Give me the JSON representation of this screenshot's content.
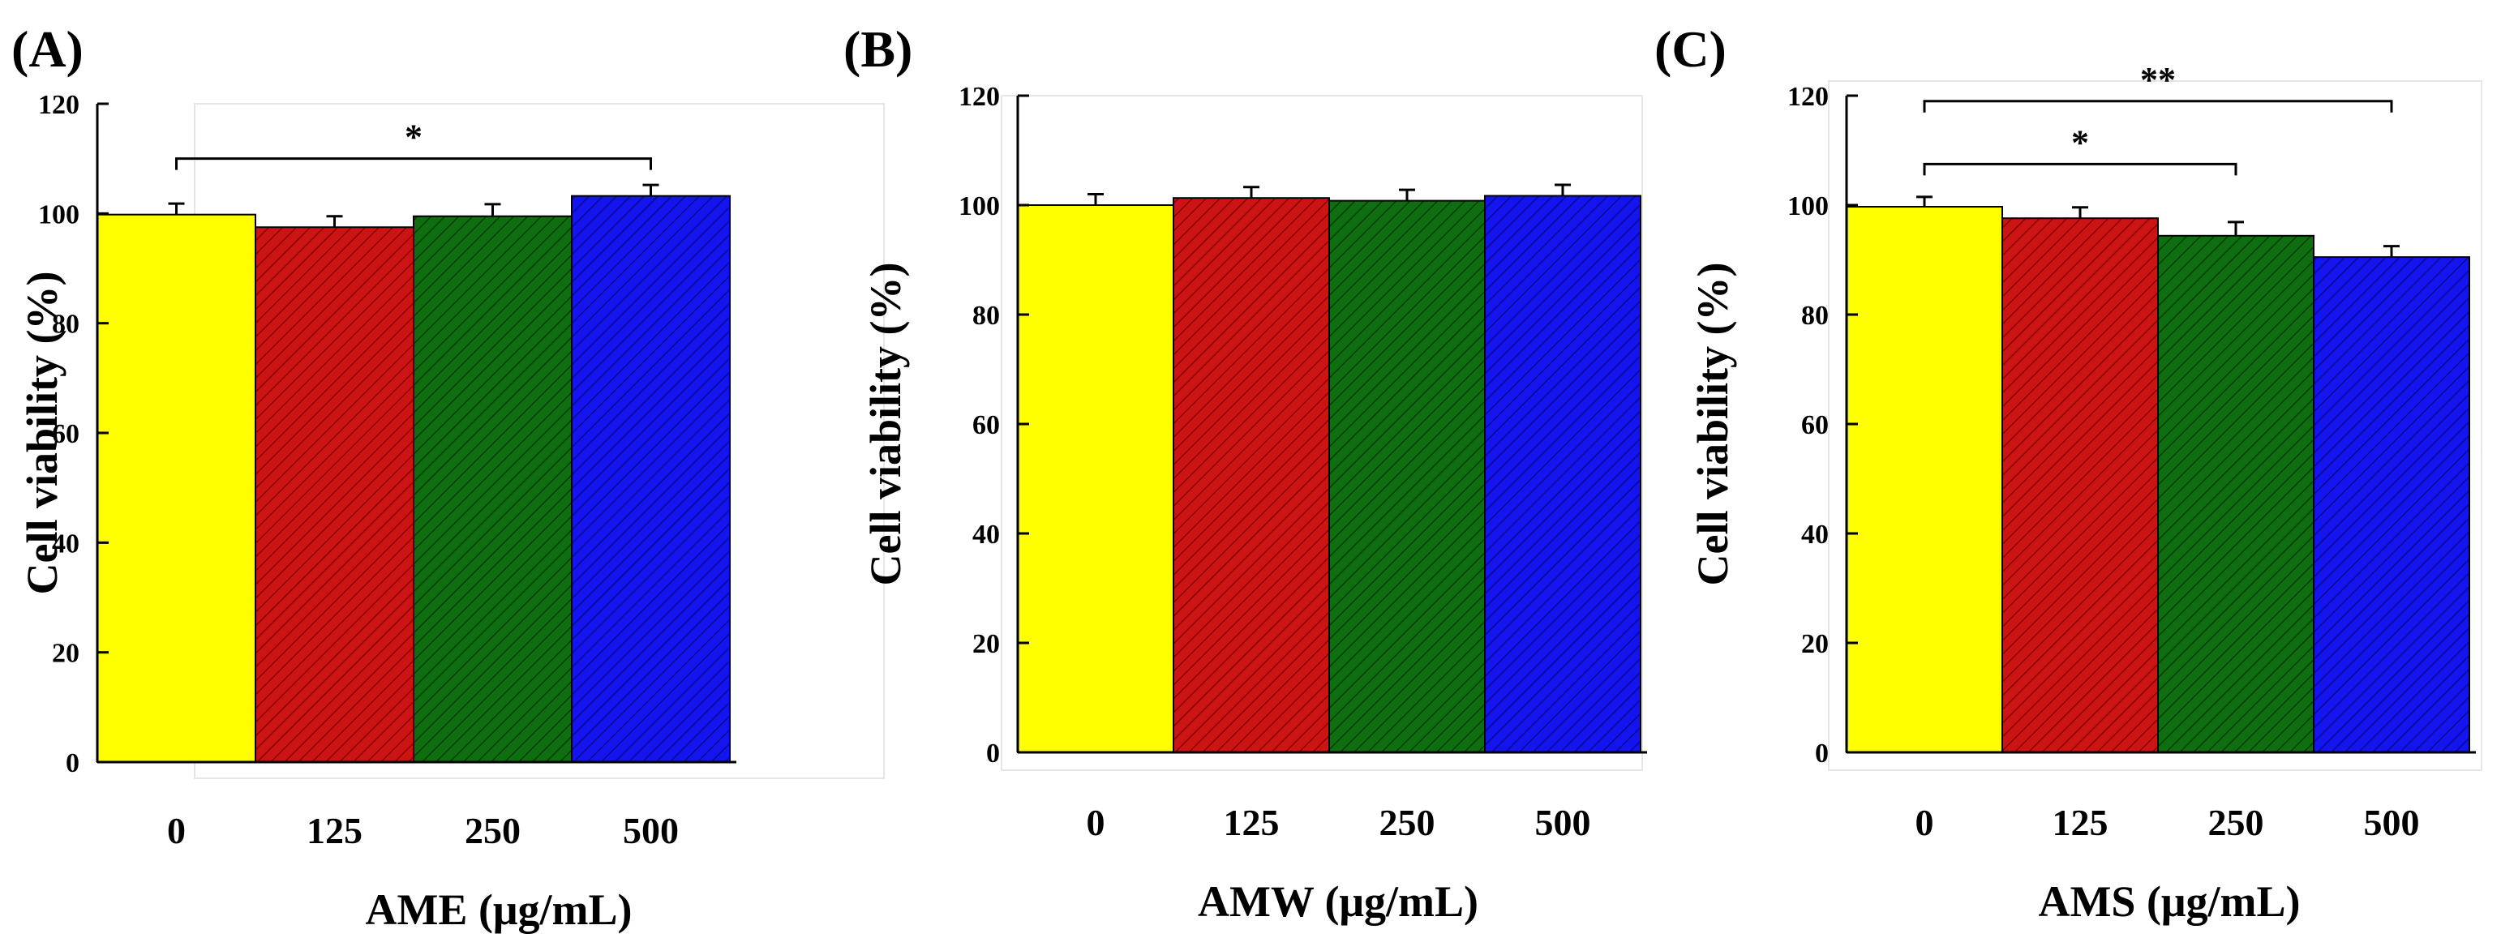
{
  "colors": {
    "bar_0": "#ffff00",
    "bar_125": "#cc1414",
    "bar_250": "#0f6e0f",
    "bar_500": "#1414ee",
    "axis": "#000000"
  },
  "chart_data": [
    {
      "type": "bar",
      "panel": "(A)",
      "categories": [
        "0",
        "125",
        "250",
        "500"
      ],
      "values": [
        99.8,
        97.5,
        99.5,
        103.2
      ],
      "errors": [
        2.0,
        2.0,
        2.2,
        2.0
      ],
      "xlabel": "AME (μg/mL)",
      "ylabel": "Cell viability (%)",
      "ylim": [
        0,
        120
      ],
      "yticks": [
        "0",
        "20",
        "40",
        "60",
        "80",
        "100",
        "120"
      ],
      "significance": [
        {
          "from": "0",
          "to": "500",
          "label": "*"
        }
      ]
    },
    {
      "type": "bar",
      "panel": "(B)",
      "categories": [
        "0",
        "125",
        "250",
        "500"
      ],
      "values": [
        100.0,
        101.3,
        100.8,
        101.7
      ],
      "errors": [
        2.0,
        2.0,
        2.0,
        2.0
      ],
      "xlabel": "AMW (μg/mL)",
      "ylabel": "Cell viability (%)",
      "ylim": [
        0,
        120
      ],
      "yticks": [
        "0",
        "20",
        "40",
        "60",
        "80",
        "100",
        "120"
      ],
      "significance": []
    },
    {
      "type": "bar",
      "panel": "(C)",
      "categories": [
        "0",
        "125",
        "250",
        "500"
      ],
      "values": [
        99.7,
        97.6,
        94.4,
        90.5
      ],
      "errors": [
        1.8,
        2.0,
        2.5,
        2.0
      ],
      "xlabel": "AMS (μg/mL)",
      "ylabel": "Cell viability (%)",
      "ylim": [
        0,
        120
      ],
      "yticks": [
        "0",
        "20",
        "40",
        "60",
        "80",
        "100",
        "120"
      ],
      "significance": [
        {
          "from": "0",
          "to": "250",
          "label": "*"
        },
        {
          "from": "0",
          "to": "500",
          "label": "**"
        }
      ]
    }
  ]
}
